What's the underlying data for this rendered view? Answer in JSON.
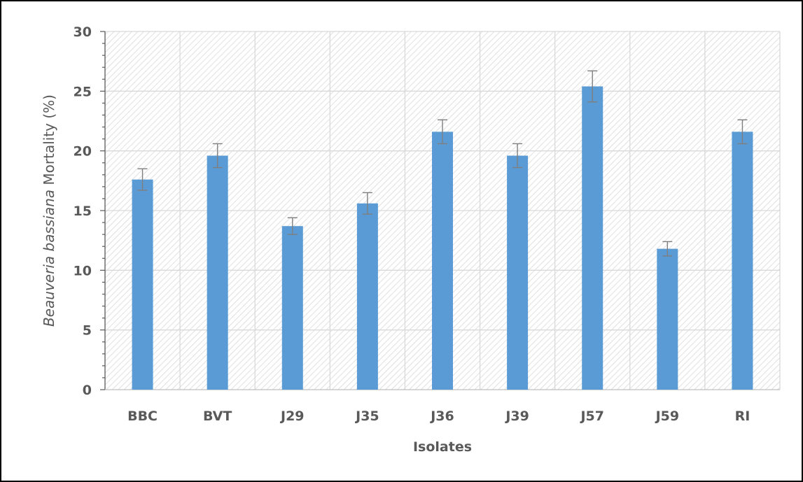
{
  "chart_data": {
    "type": "bar",
    "categories": [
      "BBC",
      "BVT",
      "J29",
      "J35",
      "J36",
      "J39",
      "J57",
      "J59",
      "RI"
    ],
    "values": [
      17.6,
      19.6,
      13.7,
      15.6,
      21.6,
      19.6,
      25.4,
      11.8,
      21.6
    ],
    "errors": [
      0.9,
      1.0,
      0.7,
      0.9,
      1.0,
      1.0,
      1.3,
      0.6,
      1.0
    ],
    "title": "",
    "xlabel": "Isolates",
    "ylabel_italic": "Beauveria bassiana",
    "ylabel_rest": " Mortality (%)",
    "ylim": [
      0,
      30
    ],
    "yticks": [
      0,
      5,
      10,
      15,
      20,
      25,
      30
    ],
    "grid": true,
    "bar_color": "#5B9BD5",
    "error_bar_color": "#7F7F7F",
    "grid_color": "#D9D9D9"
  }
}
